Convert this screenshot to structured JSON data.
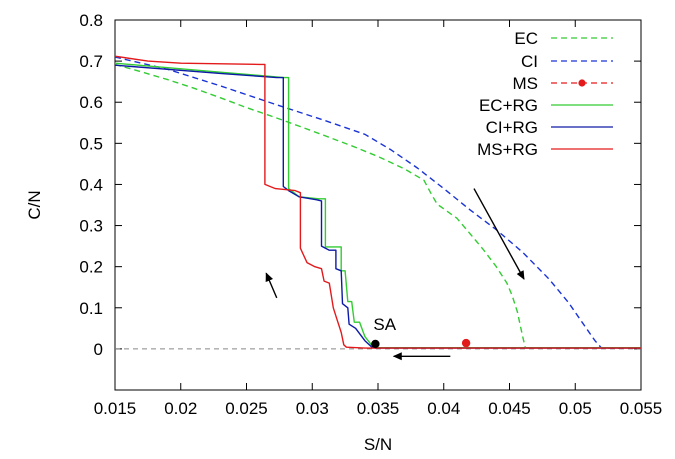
{
  "chart_data": {
    "type": "line",
    "xlabel": "S/N",
    "ylabel": "C/N",
    "xlim": [
      0.015,
      0.055
    ],
    "ylim": [
      -0.1,
      0.8
    ],
    "x_ticks": [
      "0.015",
      "0.02",
      "0.025",
      "0.03",
      "0.035",
      "0.04",
      "0.045",
      "0.05",
      "0.055"
    ],
    "y_ticks": [
      "0",
      "0.1",
      "0.2",
      "0.3",
      "0.4",
      "0.5",
      "0.6",
      "0.7",
      "0.8"
    ],
    "grid": false,
    "legend_position": "top-right",
    "reference_line": {
      "y": 0,
      "style": "dashed",
      "color": "#888888"
    },
    "series": [
      {
        "name": "EC",
        "color": "#33cc33",
        "dash": "6,4",
        "marker": null,
        "points": [
          [
            0.015,
            0.692
          ],
          [
            0.017,
            0.674
          ],
          [
            0.019,
            0.655
          ],
          [
            0.021,
            0.634
          ],
          [
            0.023,
            0.611
          ],
          [
            0.025,
            0.587
          ],
          [
            0.027,
            0.565
          ],
          [
            0.029,
            0.542
          ],
          [
            0.031,
            0.518
          ],
          [
            0.033,
            0.494
          ],
          [
            0.035,
            0.468
          ],
          [
            0.037,
            0.438
          ],
          [
            0.0385,
            0.41
          ],
          [
            0.039,
            0.38
          ],
          [
            0.0395,
            0.352
          ],
          [
            0.041,
            0.318
          ],
          [
            0.042,
            0.28
          ],
          [
            0.043,
            0.242
          ],
          [
            0.044,
            0.2
          ],
          [
            0.0448,
            0.16
          ],
          [
            0.0452,
            0.13
          ],
          [
            0.0456,
            0.09
          ],
          [
            0.0458,
            0.06
          ],
          [
            0.046,
            0.03
          ],
          [
            0.0462,
            0.003
          ],
          [
            0.055,
            0.003
          ]
        ]
      },
      {
        "name": "CI",
        "color": "#1a33d6",
        "dash": "6,4",
        "marker": null,
        "points": [
          [
            0.015,
            0.71
          ],
          [
            0.019,
            0.68
          ],
          [
            0.023,
            0.64
          ],
          [
            0.027,
            0.597
          ],
          [
            0.031,
            0.555
          ],
          [
            0.034,
            0.522
          ],
          [
            0.036,
            0.484
          ],
          [
            0.038,
            0.44
          ],
          [
            0.04,
            0.39
          ],
          [
            0.042,
            0.338
          ],
          [
            0.044,
            0.29
          ],
          [
            0.046,
            0.235
          ],
          [
            0.048,
            0.17
          ],
          [
            0.0495,
            0.112
          ],
          [
            0.0505,
            0.066
          ],
          [
            0.0515,
            0.02
          ],
          [
            0.052,
            0.002
          ],
          [
            0.055,
            0.002
          ]
        ]
      },
      {
        "name": "MS",
        "color": "#e31a1c",
        "dash": "6,4",
        "marker": "circle",
        "points": [
          [
            0.0417,
            0.014
          ]
        ]
      },
      {
        "name": "EC+RG",
        "color": "#33cc33",
        "dash": null,
        "marker": null,
        "points": [
          [
            0.015,
            0.695
          ],
          [
            0.019,
            0.684
          ],
          [
            0.023,
            0.673
          ],
          [
            0.026,
            0.665
          ],
          [
            0.0278,
            0.66
          ],
          [
            0.0282,
            0.66
          ],
          [
            0.0282,
            0.39
          ],
          [
            0.029,
            0.37
          ],
          [
            0.0305,
            0.365
          ],
          [
            0.031,
            0.365
          ],
          [
            0.031,
            0.248
          ],
          [
            0.0317,
            0.248
          ],
          [
            0.0322,
            0.248
          ],
          [
            0.0322,
            0.19
          ],
          [
            0.0325,
            0.19
          ],
          [
            0.0327,
            0.115
          ],
          [
            0.033,
            0.115
          ],
          [
            0.0332,
            0.065
          ],
          [
            0.0336,
            0.065
          ],
          [
            0.034,
            0.03
          ],
          [
            0.0345,
            0.01
          ],
          [
            0.0348,
            0.003
          ],
          [
            0.055,
            0.003
          ]
        ]
      },
      {
        "name": "CI+RG",
        "color": "#0d1aa6",
        "dash": null,
        "marker": null,
        "points": [
          [
            0.015,
            0.69
          ],
          [
            0.019,
            0.68
          ],
          [
            0.023,
            0.67
          ],
          [
            0.026,
            0.663
          ],
          [
            0.0273,
            0.66
          ],
          [
            0.0278,
            0.66
          ],
          [
            0.0278,
            0.395
          ],
          [
            0.0282,
            0.385
          ],
          [
            0.029,
            0.37
          ],
          [
            0.0303,
            0.363
          ],
          [
            0.0307,
            0.36
          ],
          [
            0.0307,
            0.25
          ],
          [
            0.0313,
            0.24
          ],
          [
            0.0318,
            0.24
          ],
          [
            0.0318,
            0.195
          ],
          [
            0.0322,
            0.19
          ],
          [
            0.0323,
            0.11
          ],
          [
            0.0327,
            0.1
          ],
          [
            0.0328,
            0.06
          ],
          [
            0.0333,
            0.05
          ],
          [
            0.034,
            0.02
          ],
          [
            0.0345,
            0.005
          ],
          [
            0.0348,
            0.002
          ],
          [
            0.055,
            0.002
          ]
        ]
      },
      {
        "name": "MS+RG",
        "color": "#e31a1c",
        "dash": null,
        "marker": null,
        "points": [
          [
            0.015,
            0.712
          ],
          [
            0.0175,
            0.7
          ],
          [
            0.02,
            0.695
          ],
          [
            0.026,
            0.692
          ],
          [
            0.0264,
            0.692
          ],
          [
            0.0264,
            0.4
          ],
          [
            0.0272,
            0.39
          ],
          [
            0.0287,
            0.385
          ],
          [
            0.0291,
            0.38
          ],
          [
            0.0291,
            0.245
          ],
          [
            0.0296,
            0.21
          ],
          [
            0.0302,
            0.2
          ],
          [
            0.0307,
            0.195
          ],
          [
            0.0309,
            0.165
          ],
          [
            0.0313,
            0.16
          ],
          [
            0.0316,
            0.1
          ],
          [
            0.0319,
            0.07
          ],
          [
            0.0322,
            0.04
          ],
          [
            0.0324,
            0.01
          ],
          [
            0.0326,
            0.004
          ],
          [
            0.034,
            0.002
          ],
          [
            0.055,
            0.002
          ]
        ]
      }
    ],
    "annotations": [
      {
        "text": "SA",
        "point": [
          0.0348,
          0.012
        ],
        "color": "#000000"
      }
    ],
    "arrows": [
      {
        "from": [
          0.0423,
          0.39
        ],
        "to": [
          0.0461,
          0.17
        ],
        "direction": "down-right"
      },
      {
        "from": [
          0.0273,
          0.124
        ],
        "to": [
          0.0265,
          0.184
        ],
        "direction": "up"
      },
      {
        "from": [
          0.0405,
          -0.018
        ],
        "to": [
          0.0362,
          -0.018
        ],
        "direction": "left"
      }
    ]
  }
}
